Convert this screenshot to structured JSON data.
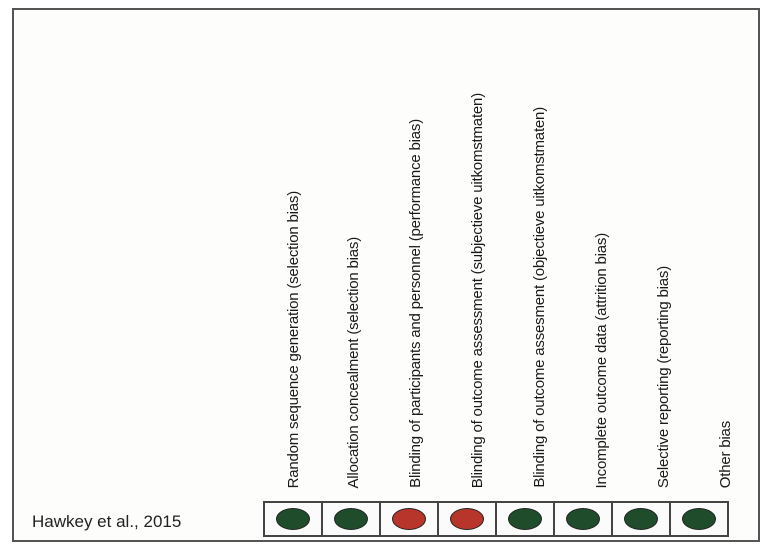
{
  "colors": {
    "low_risk": "#1f4d2c",
    "high_risk": "#b8352b"
  },
  "domains": [
    "Random sequence generation (selection bias)",
    "Allocation concealment (selection bias)",
    "Blinding of participants and personnel (performance bias)",
    "Blinding of outcome assessment (subjectieve uitkomstmaten)",
    "Blinding of outcome assesment (objectieve uitkomstmaten)",
    "Incomplete outcome data (attrition bias)",
    "Selective reporting (reporting bias)",
    "Other bias"
  ],
  "studies": [
    {
      "name": "Hawkey et al., 2015",
      "judgements": [
        "low",
        "low",
        "high",
        "high",
        "low",
        "low",
        "low",
        "low"
      ]
    }
  ]
}
